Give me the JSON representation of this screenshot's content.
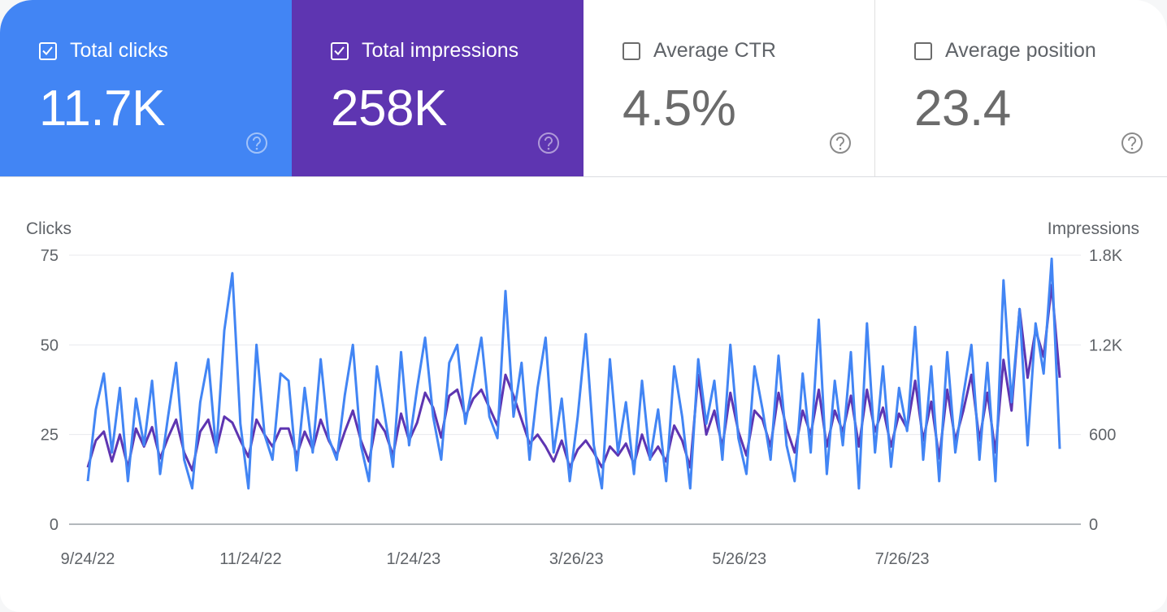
{
  "metrics": [
    {
      "label": "Total clicks",
      "value": "11.7K",
      "checked": true,
      "color": "#4285f4"
    },
    {
      "label": "Total impressions",
      "value": "258K",
      "checked": true,
      "color": "#5e35b1"
    },
    {
      "label": "Average CTR",
      "value": "4.5%",
      "checked": false
    },
    {
      "label": "Average position",
      "value": "23.4",
      "checked": false
    }
  ],
  "chart_data": {
    "type": "line",
    "left_axis": {
      "label": "Clicks",
      "ticks": [
        "0",
        "25",
        "50",
        "75"
      ],
      "range": [
        0,
        75
      ]
    },
    "right_axis": {
      "label": "Impressions",
      "ticks": [
        "0",
        "600",
        "1.2K",
        "1.8K"
      ],
      "range": [
        0,
        1800
      ]
    },
    "x_ticks": [
      "9/24/22",
      "11/24/22",
      "1/24/23",
      "3/26/23",
      "5/26/23",
      "7/26/23"
    ],
    "x_tick_days": [
      0,
      61,
      122,
      183,
      244,
      305
    ],
    "total_days": 364,
    "grid": true,
    "series": [
      {
        "name": "Clicks",
        "axis": "left",
        "color": "#4285f4",
        "values": [
          12,
          32,
          42,
          20,
          38,
          12,
          35,
          22,
          40,
          14,
          30,
          45,
          18,
          10,
          34,
          46,
          20,
          54,
          70,
          28,
          10,
          50,
          25,
          18,
          42,
          40,
          15,
          38,
          20,
          46,
          24,
          18,
          36,
          50,
          22,
          12,
          44,
          30,
          16,
          48,
          22,
          38,
          52,
          30,
          18,
          45,
          50,
          28,
          40,
          52,
          30,
          24,
          65,
          30,
          45,
          18,
          38,
          52,
          20,
          35,
          12,
          30,
          53,
          22,
          10,
          46,
          20,
          34,
          14,
          40,
          18,
          32,
          12,
          44,
          30,
          10,
          46,
          28,
          40,
          18,
          50,
          24,
          14,
          44,
          32,
          18,
          47,
          22,
          12,
          42,
          20,
          57,
          14,
          40,
          22,
          48,
          10,
          56,
          20,
          44,
          16,
          38,
          26,
          55,
          18,
          44,
          12,
          48,
          20,
          36,
          50,
          18,
          45,
          12,
          68,
          34,
          60,
          22,
          56,
          42,
          74,
          21
        ]
      },
      {
        "name": "Impressions",
        "axis": "right",
        "color": "#5e35b1",
        "values": [
          380,
          560,
          620,
          420,
          600,
          380,
          640,
          520,
          650,
          440,
          580,
          700,
          480,
          360,
          620,
          700,
          500,
          720,
          680,
          560,
          450,
          700,
          600,
          520,
          640,
          640,
          460,
          620,
          500,
          700,
          560,
          460,
          620,
          760,
          560,
          420,
          700,
          620,
          460,
          740,
          560,
          680,
          880,
          780,
          580,
          860,
          900,
          720,
          840,
          900,
          780,
          660,
          1000,
          860,
          700,
          540,
          600,
          520,
          420,
          560,
          380,
          500,
          560,
          480,
          380,
          520,
          460,
          540,
          400,
          600,
          440,
          520,
          420,
          660,
          560,
          380,
          1000,
          600,
          760,
          520,
          880,
          620,
          460,
          760,
          700,
          520,
          880,
          640,
          480,
          760,
          600,
          900,
          520,
          760,
          620,
          860,
          520,
          900,
          620,
          780,
          520,
          740,
          640,
          960,
          560,
          820,
          440,
          900,
          560,
          760,
          1000,
          560,
          880,
          480,
          1100,
          760,
          1440,
          980,
          1300,
          1120,
          1600,
          980
        ]
      }
    ]
  }
}
